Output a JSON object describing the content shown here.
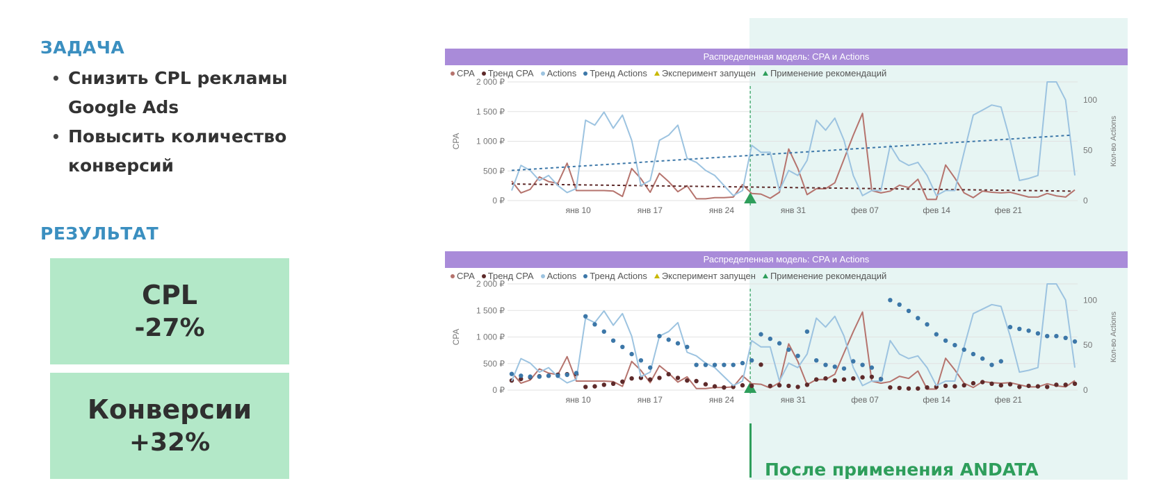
{
  "left": {
    "task_title": "ЗАДАЧА",
    "task_items": [
      "Снизить CPL рекламы Google Ads",
      "Повысить количество конверсий"
    ],
    "result_title": "РЕЗУЛЬТАТ",
    "kpis": [
      {
        "label": "CPL",
        "value": "-27%"
      },
      {
        "label": "Конверсии",
        "value": "+32%"
      }
    ]
  },
  "annotation": {
    "post_label": "После применения ANDATA"
  },
  "colors": {
    "cpa": "#b5736d",
    "cpa_trend": "#5e2a2a",
    "actions": "#9cc3e0",
    "actions_trend": "#3c77a8",
    "experiment": "#c9b800",
    "apply": "#2e9e5b",
    "banner": "#a98bd9"
  },
  "chart_data": [
    {
      "type": "line",
      "title": "Распределенная модель: CPA и Actions",
      "legend": [
        "CPA",
        "Тренд CPA",
        "Actions",
        "Тренд Actions",
        "Эксперимент запущен",
        "Применение рекомендаций"
      ],
      "ylabel": "CPA",
      "y2label": "Кол-во Actions",
      "ylim": [
        0,
        2000
      ],
      "y2lim": [
        0,
        118
      ],
      "yticks": [
        "2 000 ₽",
        "1 500 ₽",
        "1 000 ₽",
        "500 ₽",
        "0 ₽"
      ],
      "y2ticks": [
        "100",
        "50",
        "0"
      ],
      "xticks": [
        "янв 10",
        "янв 17",
        "янв 24",
        "янв 31",
        "фев 07",
        "фев 14",
        "фев 21"
      ],
      "x_range": [
        "янв 4",
        "фев 28"
      ],
      "apply_marker_date": "янв 27",
      "series": [
        {
          "name": "CPA",
          "style": "line",
          "values": [
            330,
            130,
            190,
            400,
            320,
            290,
            630,
            170,
            170,
            170,
            170,
            160,
            70,
            540,
            370,
            140,
            460,
            320,
            150,
            250,
            30,
            30,
            50,
            50,
            60,
            270,
            120,
            110,
            40,
            140,
            870,
            540,
            100,
            200,
            200,
            300,
            700,
            1100,
            1470,
            170,
            130,
            160,
            260,
            220,
            360,
            20,
            20,
            600,
            380,
            130,
            50,
            160,
            140,
            130,
            140,
            100,
            60,
            60,
            120,
            80,
            60,
            180
          ]
        },
        {
          "name": "Тренд CPA",
          "style": "dashed",
          "values": [
            280,
            160
          ]
        },
        {
          "name": "Actions",
          "style": "line",
          "values": [
            10,
            35,
            30,
            20,
            25,
            15,
            8,
            12,
            80,
            75,
            88,
            72,
            85,
            60,
            15,
            20,
            60,
            65,
            75,
            42,
            38,
            30,
            25,
            15,
            5,
            10,
            55,
            48,
            48,
            10,
            30,
            25,
            40,
            80,
            70,
            82,
            60,
            25,
            5,
            10,
            10,
            55,
            40,
            35,
            38,
            25,
            5,
            10,
            10,
            48,
            85,
            90,
            95,
            93,
            60,
            20,
            22,
            25,
            118,
            118,
            100,
            25
          ]
        },
        {
          "name": "Тренд Actions",
          "style": "dashed",
          "values": [
            30,
            65
          ]
        }
      ]
    },
    {
      "type": "line",
      "title": "Распределенная модель: CPA и Actions",
      "legend": [
        "CPA",
        "Тренд CPA",
        "Actions",
        "Тренд Actions",
        "Эксперимент запущен",
        "Применение рекомендаций"
      ],
      "ylabel": "CPA",
      "y2label": "Кол-во Actions",
      "ylim": [
        0,
        2000
      ],
      "y2lim": [
        0,
        118
      ],
      "yticks": [
        "2 000 ₽",
        "1 500 ₽",
        "1 000 ₽",
        "500 ₽",
        "0 ₽"
      ],
      "y2ticks": [
        "100",
        "50",
        "0"
      ],
      "xticks": [
        "янв 10",
        "янв 17",
        "янв 24",
        "янв 31",
        "фев 07",
        "фев 14",
        "фев 21"
      ],
      "x_range": [
        "янв 4",
        "фев 28"
      ],
      "apply_marker_date": "янв 27",
      "series": [
        {
          "name": "CPA",
          "style": "line",
          "values": [
            330,
            130,
            190,
            400,
            320,
            290,
            630,
            170,
            170,
            170,
            170,
            160,
            70,
            540,
            370,
            140,
            460,
            320,
            150,
            250,
            30,
            30,
            50,
            50,
            60,
            270,
            120,
            110,
            40,
            140,
            870,
            540,
            100,
            200,
            200,
            300,
            700,
            1100,
            1470,
            170,
            130,
            160,
            260,
            220,
            360,
            20,
            20,
            600,
            380,
            130,
            50,
            160,
            140,
            130,
            140,
            100,
            60,
            60,
            120,
            80,
            60,
            180
          ]
        },
        {
          "name": "Тренд CPA",
          "style": "dots",
          "values": [
            180,
            210,
            240,
            260,
            270,
            290,
            300,
            300,
            60,
            70,
            100,
            120,
            160,
            220,
            230,
            200,
            230,
            300,
            230,
            180,
            170,
            110,
            70,
            50,
            60,
            90,
            80,
            480,
            80,
            90,
            80,
            60,
            100,
            200,
            220,
            180,
            200,
            220,
            240,
            250,
            210,
            50,
            40,
            30,
            30,
            50,
            60,
            80,
            70,
            90,
            130,
            150,
            120,
            90,
            110,
            60,
            80,
            70,
            60,
            100,
            100,
            120
          ]
        },
        {
          "name": "Actions",
          "style": "line",
          "values": [
            10,
            35,
            30,
            20,
            25,
            15,
            8,
            12,
            80,
            75,
            88,
            72,
            85,
            60,
            15,
            20,
            60,
            65,
            75,
            42,
            38,
            30,
            25,
            15,
            5,
            10,
            55,
            48,
            48,
            10,
            30,
            25,
            40,
            80,
            70,
            82,
            60,
            25,
            5,
            10,
            10,
            55,
            40,
            35,
            38,
            25,
            5,
            10,
            10,
            48,
            85,
            90,
            95,
            93,
            60,
            20,
            22,
            25,
            118,
            118,
            100,
            25
          ]
        },
        {
          "name": "Тренд Actions",
          "style": "dots",
          "values": [
            18,
            16,
            15,
            15,
            16,
            16,
            17,
            19,
            82,
            73,
            65,
            55,
            48,
            40,
            33,
            25,
            60,
            56,
            52,
            48,
            28,
            28,
            28,
            28,
            28,
            30,
            33,
            62,
            57,
            52,
            45,
            38,
            65,
            33,
            28,
            26,
            24,
            32,
            28,
            25,
            12,
            100,
            95,
            88,
            80,
            73,
            62,
            55,
            50,
            45,
            40,
            35,
            28,
            32,
            70,
            68,
            66,
            63,
            60,
            60,
            58,
            54
          ]
        }
      ]
    }
  ]
}
